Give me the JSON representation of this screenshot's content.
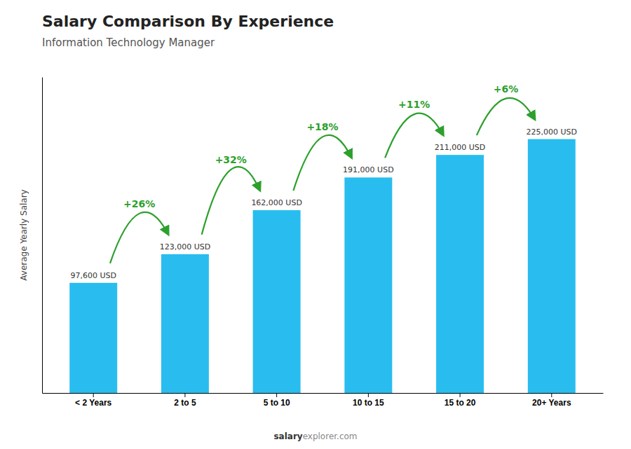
{
  "chart_data": {
    "type": "bar",
    "title": "Salary Comparison By Experience",
    "subtitle": "Information Technology Manager",
    "categories": [
      "< 2 Years",
      "2 to 5",
      "5 to 10",
      "10 to 15",
      "15 to 20",
      "20+ Years"
    ],
    "values": [
      97600,
      123000,
      162000,
      191000,
      211000,
      225000
    ],
    "value_labels": [
      "97,600 USD",
      "123,000 USD",
      "162,000 USD",
      "191,000 USD",
      "211,000 USD",
      "225,000 USD"
    ],
    "data_labels": true,
    "annotations": [
      "+26%",
      "+32%",
      "+18%",
      "+11%",
      "+6%"
    ],
    "color": "#29BDEF",
    "y_label": "Average Yearly Salary",
    "ylim": [
      0,
      280000
    ],
    "tick_labels": "x",
    "footer": [
      "salary",
      "explorer.com"
    ]
  }
}
